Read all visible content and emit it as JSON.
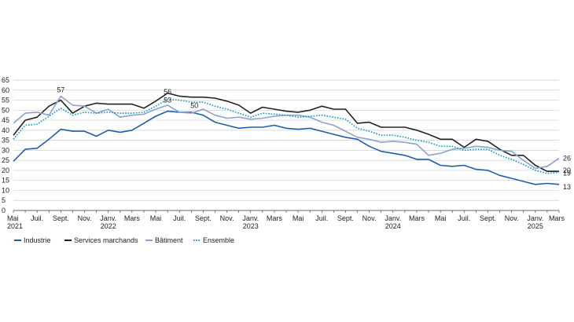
{
  "chart_data": {
    "type": "line",
    "title": "",
    "xlabel": "",
    "ylabel": "",
    "ylim": [
      0,
      65
    ],
    "yticks": [
      0,
      5,
      10,
      15,
      20,
      25,
      30,
      35,
      40,
      45,
      50,
      55,
      60,
      65
    ],
    "grid": "horizontal",
    "legend_position": "bottom-left",
    "x_tick_labels": [
      {
        "month_index": 0,
        "label": "Mai",
        "year": "2021"
      },
      {
        "month_index": 2,
        "label": "Juil.",
        "year": ""
      },
      {
        "month_index": 4,
        "label": "Sept.",
        "year": ""
      },
      {
        "month_index": 6,
        "label": "Nov.",
        "year": ""
      },
      {
        "month_index": 8,
        "label": "Janv.",
        "year": "2022"
      },
      {
        "month_index": 10,
        "label": "Mars",
        "year": ""
      },
      {
        "month_index": 12,
        "label": "Mai",
        "year": ""
      },
      {
        "month_index": 14,
        "label": "Juil.",
        "year": ""
      },
      {
        "month_index": 16,
        "label": "Sept.",
        "year": ""
      },
      {
        "month_index": 18,
        "label": "Nov.",
        "year": ""
      },
      {
        "month_index": 20,
        "label": "Janv.",
        "year": "2023"
      },
      {
        "month_index": 22,
        "label": "Mars",
        "year": ""
      },
      {
        "month_index": 24,
        "label": "Mai",
        "year": ""
      },
      {
        "month_index": 26,
        "label": "Juil.",
        "year": ""
      },
      {
        "month_index": 28,
        "label": "Sept.",
        "year": ""
      },
      {
        "month_index": 30,
        "label": "Nov.",
        "year": ""
      },
      {
        "month_index": 32,
        "label": "Janv.",
        "year": "2024"
      },
      {
        "month_index": 34,
        "label": "Mars",
        "year": ""
      },
      {
        "month_index": 36,
        "label": "Mai",
        "year": ""
      },
      {
        "month_index": 38,
        "label": "Juil.",
        "year": ""
      },
      {
        "month_index": 40,
        "label": "Sept.",
        "year": ""
      },
      {
        "month_index": 42,
        "label": "Nov.",
        "year": ""
      },
      {
        "month_index": 44,
        "label": "Janv.",
        "year": "2025"
      },
      {
        "month_index": 46,
        "label": "Mars",
        "year": ""
      }
    ],
    "series": [
      {
        "name": "Industrie",
        "color": "#1f5ea8",
        "dash": "solid",
        "values": [
          24.5,
          30.5,
          31,
          35.5,
          40.5,
          39.5,
          39.5,
          37,
          40,
          39,
          40,
          43.5,
          47,
          49.5,
          49,
          49,
          47.5,
          44,
          42.5,
          41,
          41.5,
          41.5,
          42.5,
          41,
          40.5,
          41,
          39.5,
          38,
          36.5,
          35.5,
          32,
          29.5,
          28.5,
          27.5,
          25.5,
          25.5,
          22.5,
          22,
          22.5,
          20.5,
          20,
          17.5,
          16,
          14.5,
          13,
          13.5,
          13
        ]
      },
      {
        "name": "Services marchands",
        "color": "#222222",
        "dash": "solid",
        "values": [
          37.5,
          45,
          46.5,
          52,
          55,
          48.5,
          52,
          53.5,
          53,
          53,
          53,
          51,
          54.5,
          58.5,
          57,
          56.5,
          56.5,
          56,
          54.5,
          52.5,
          48.5,
          51.5,
          50.5,
          49.5,
          49,
          50,
          52,
          50.5,
          50.5,
          43.5,
          44,
          41.5,
          41.5,
          41.5,
          40,
          38,
          35.5,
          35.5,
          31.5,
          35.5,
          34.5,
          30.5,
          27.5,
          27.5,
          22.5,
          19.5,
          19.5
        ]
      },
      {
        "name": "Bâtiment",
        "color": "#8aa3cf",
        "dash": "solid",
        "values": [
          43.5,
          48.5,
          49,
          47.5,
          57,
          52.5,
          52,
          48.5,
          50.5,
          46.5,
          47.5,
          48,
          50.5,
          52.5,
          49,
          48.5,
          50.5,
          47.5,
          46,
          46.5,
          45.5,
          46,
          47,
          47.5,
          47.5,
          46.5,
          44,
          42.5,
          39.5,
          36.5,
          35.5,
          34,
          34.5,
          34,
          33,
          27.5,
          28.5,
          30.5,
          31,
          32,
          31.5,
          30,
          29.5,
          25,
          21,
          22,
          26
        ]
      },
      {
        "name": "Ensemble",
        "color": "#17a0cf",
        "dash": "dotted",
        "values": [
          35.5,
          42.5,
          43,
          47,
          51,
          47.5,
          49,
          48.5,
          49,
          48.5,
          48.5,
          49,
          52,
          55.5,
          55,
          54,
          54,
          52,
          50.5,
          48.5,
          46.5,
          48.5,
          48,
          47.5,
          46.5,
          47,
          47.5,
          46.5,
          45.5,
          41,
          39.5,
          37.5,
          37.5,
          36.5,
          35,
          34,
          32,
          32,
          30,
          30.5,
          30.5,
          27.5,
          25.5,
          23,
          20,
          18.5,
          19
        ]
      }
    ],
    "annotations": [
      {
        "text": "57",
        "month_index": 4,
        "value": 57
      },
      {
        "text": "56",
        "month_index": 13,
        "value": 56
      },
      {
        "text": "53",
        "month_index": 13,
        "value": 53
      },
      {
        "text": "50",
        "month_index": 15,
        "value": 50
      },
      {
        "text": "26",
        "month_index": 46,
        "value": 26
      },
      {
        "text": "20",
        "month_index": 46,
        "value": 20
      },
      {
        "text": "19",
        "month_index": 46,
        "value": 19
      },
      {
        "text": "13",
        "month_index": 46,
        "value": 13
      }
    ]
  }
}
